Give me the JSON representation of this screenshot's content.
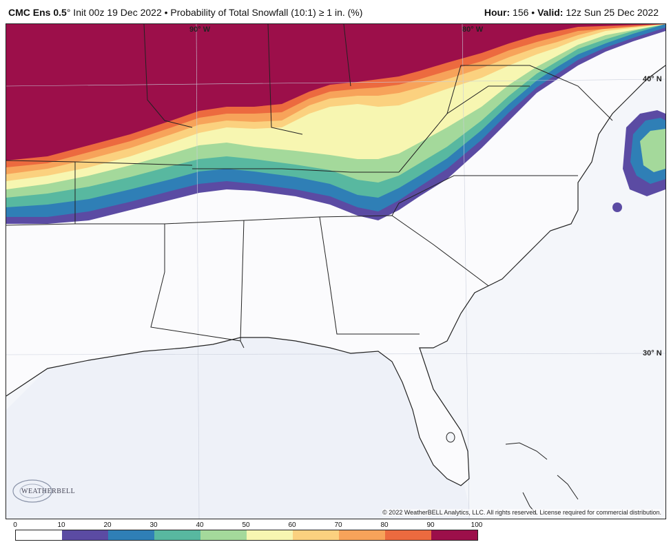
{
  "header": {
    "model": "CMC Ens 0.5",
    "degree": "°",
    "init": " Init 00z 19 Dec 2022 • Probability of Total Snowfall (10:1) ≥ 1 in. (%)",
    "hour_label": "Hour:",
    "hour_value": " 156 • ",
    "valid_label": "Valid:",
    "valid_value": " 12z Sun 25 Dec 2022"
  },
  "map": {
    "lat_labels": [
      "40° N",
      "30° N"
    ],
    "lon_labels": [
      "90° W",
      "80° W"
    ],
    "copyright": "© 2022 WeatherBELL Analytics, LLC. All rights reserved. License required for commercial distribution.",
    "logo_text": "WEATHERBELL",
    "logo_icon": "swirl-logo-icon"
  },
  "colorbar": {
    "ticks": [
      "0",
      "10",
      "20",
      "30",
      "40",
      "50",
      "60",
      "70",
      "80",
      "90",
      "100"
    ],
    "colors": [
      "#ffffff",
      "#5b4ba3",
      "#2f7fb6",
      "#58b8a0",
      "#a4d99b",
      "#f7f6b1",
      "#fbd17f",
      "#f7a35a",
      "#ec6a3f",
      "#9c0f4a"
    ]
  }
}
